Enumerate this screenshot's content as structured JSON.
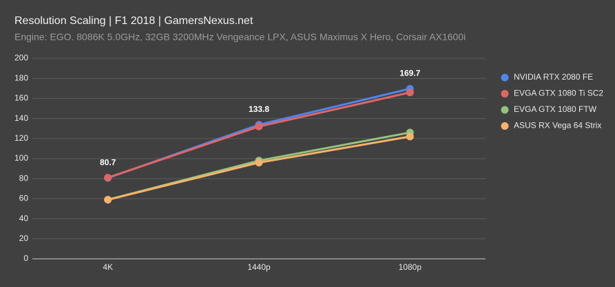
{
  "chart_data": {
    "type": "line",
    "title": "Resolution Scaling | F1 2018 | GamersNexus.net",
    "subtitle": "Engine: EGO. 8086K 5.0GHz, 32GB 3200MHz Vengeance LPX, ASUS Maximus X Hero, Corsair AX1600i",
    "categories": [
      "4K",
      "1440p",
      "1080p"
    ],
    "series": [
      {
        "name": "NVIDIA RTX 2080 FE",
        "color": "#4f86ec",
        "values": [
          80.7,
          133.8,
          169.7
        ],
        "data_labels": true
      },
      {
        "name": "EVGA GTX 1080 Ti SC2",
        "color": "#e06666",
        "values": [
          81,
          132,
          166
        ]
      },
      {
        "name": "EVGA GTX 1080 FTW",
        "color": "#93c47d",
        "values": [
          59,
          98,
          126
        ]
      },
      {
        "name": "ASUS RX Vega 64 Strix",
        "color": "#f6b26b",
        "values": [
          59,
          96,
          122
        ]
      }
    ],
    "ylim": [
      0,
      200
    ],
    "yticks": [
      0,
      20,
      40,
      60,
      80,
      100,
      120,
      140,
      160,
      180,
      200
    ],
    "grid": true,
    "legend": "right"
  }
}
